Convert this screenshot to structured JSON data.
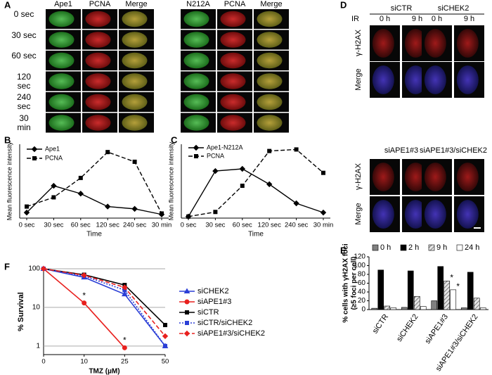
{
  "panel_labels": [
    "A",
    "B",
    "C",
    "D",
    "E",
    "F"
  ],
  "panel_a": {
    "left_headers": [
      "Ape1",
      "PCNA",
      "Merge"
    ],
    "right_headers": [
      "N212A",
      "PCNA",
      "Merge"
    ],
    "row_labels": [
      "0 sec",
      "30 sec",
      "60 sec",
      "120 sec",
      "240 sec",
      "30 min"
    ]
  },
  "panel_d": {
    "ir_label": "IR",
    "top_groups": [
      "siCTR",
      "siCHEK2"
    ],
    "bottom_groups": [
      "siAPE1#3",
      "siAPE1#3/siCHEK2"
    ],
    "time_labels": [
      "0 h",
      "9 h",
      "0 h",
      "9 h"
    ],
    "row_labels": [
      "γ-H2AX",
      "Merge",
      "γ-H2AX",
      "Merge"
    ]
  },
  "chart_data": [
    {
      "type": "line",
      "xlabel": "Time",
      "ylabel": "Mean fluorescence intensity",
      "categories": [
        "0 sec",
        "30 sec",
        "60 sec",
        "120 sec",
        "240 sec",
        "30 min"
      ],
      "ylim": [
        0,
        160
      ],
      "series": [
        {
          "name": "Ape1",
          "color": "#000000",
          "marker": "diamond",
          "dash": "solid",
          "values": [
            12,
            70,
            53,
            25,
            20,
            8
          ]
        },
        {
          "name": "PCNA",
          "color": "#000000",
          "marker": "square",
          "dash": "dashed",
          "values": [
            25,
            45,
            87,
            143,
            122,
            10
          ]
        }
      ]
    },
    {
      "type": "line",
      "xlabel": "Time",
      "ylabel": "Mean fluorescence intensity",
      "categories": [
        "0 sec",
        "30 sec",
        "60 sec",
        "120 sec",
        "240 sec",
        "30 min"
      ],
      "ylim": [
        0,
        240
      ],
      "series": [
        {
          "name": "Ape1-N212A",
          "color": "#000000",
          "marker": "diamond",
          "dash": "solid",
          "values": [
            5,
            153,
            160,
            110,
            48,
            18
          ]
        },
        {
          "name": "PCNA",
          "color": "#000000",
          "marker": "square",
          "dash": "dashed",
          "values": [
            5,
            20,
            105,
            218,
            223,
            147
          ]
        }
      ]
    },
    {
      "type": "bar",
      "ylabel_lines": [
        "% cells with γH2AX foci",
        "(≥5 foci per cell)"
      ],
      "categories": [
        "siCTR",
        "siCHEK2",
        "siAPE1#3",
        "siAPE1#3/siCHEK2"
      ],
      "ylim": [
        0,
        120
      ],
      "yticks": [
        0,
        20,
        40,
        60,
        80,
        100,
        120
      ],
      "series": [
        {
          "name": "0 h",
          "color": "#808080",
          "hatch": false,
          "values": [
            3,
            5,
            20,
            4
          ]
        },
        {
          "name": "2 h",
          "color": "#000000",
          "hatch": false,
          "values": [
            90,
            88,
            98,
            85
          ]
        },
        {
          "name": "9 h",
          "color": "#cccccc",
          "hatch": true,
          "values": [
            8,
            30,
            65,
            26
          ]
        },
        {
          "name": "24 h",
          "color": "#ffffff",
          "hatch": false,
          "values": [
            4,
            7,
            45,
            4
          ]
        }
      ],
      "annotations": [
        {
          "text": "*",
          "category": "siAPE1#3",
          "series": "9 h"
        },
        {
          "text": "*",
          "category": "siAPE1#3",
          "series": "24 h"
        }
      ]
    },
    {
      "type": "line",
      "xlabel": "TMZ (µM)",
      "ylabel": "% Survival",
      "categories": [
        "0",
        "10",
        "25",
        "50"
      ],
      "log_y": true,
      "grid": true,
      "ylim": [
        0.6,
        100
      ],
      "yticks": [
        1,
        10,
        100
      ],
      "series": [
        {
          "name": "siCHEK2",
          "color": "#2b3fd6",
          "marker": "triangle",
          "dash": "solid",
          "values": [
            100,
            60,
            22,
            1
          ]
        },
        {
          "name": "siAPE1#3",
          "color": "#e8201e",
          "marker": "circle",
          "dash": "solid",
          "values": [
            100,
            13,
            0.9,
            null
          ]
        },
        {
          "name": "siCTR",
          "color": "#000000",
          "marker": "square",
          "dash": "solid",
          "values": [
            100,
            70,
            38,
            3.5
          ]
        },
        {
          "name": "siCTR/siCHEK2",
          "color": "#2b3fd6",
          "marker": "square",
          "dash": "dotted",
          "values": [
            100,
            65,
            28,
            1.0
          ]
        },
        {
          "name": "siAPE1#3/siCHEK2",
          "color": "#e8201e",
          "marker": "diamond",
          "dash": "dashed",
          "values": [
            100,
            68,
            33,
            1.8
          ]
        }
      ],
      "annotations": [
        {
          "text": "*",
          "category": "10",
          "series": "siAPE1#3"
        },
        {
          "text": "*",
          "category": "25",
          "series": "siAPE1#3"
        }
      ]
    }
  ]
}
